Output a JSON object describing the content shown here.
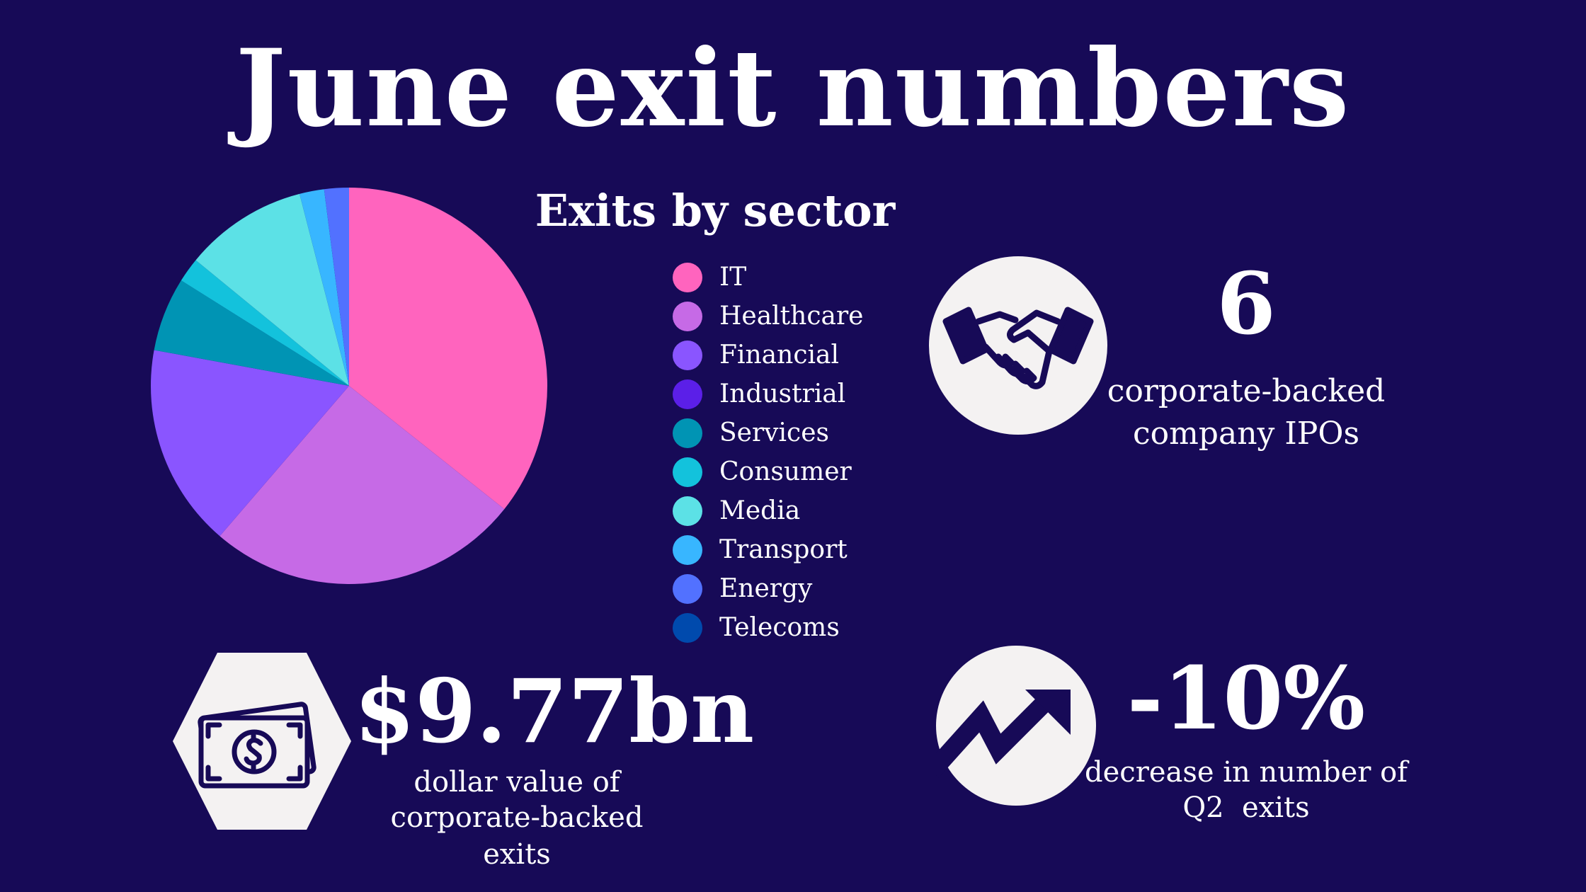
{
  "title": "June exit numbers",
  "chart_data": {
    "type": "pie",
    "title": "Exits by sector",
    "categories": [
      "IT",
      "Healthcare",
      "Financial",
      "Industrial",
      "Services",
      "Consumer",
      "Media",
      "Transport",
      "Energy",
      "Telecoms"
    ],
    "values": [
      35.5,
      25.5,
      16.5,
      0,
      6,
      2,
      10,
      2,
      2,
      0
    ],
    "colors": [
      "#ff64be",
      "#c66ae6",
      "#8a55ff",
      "#5b1fe8",
      "#0094b4",
      "#13c2dc",
      "#5ce1e6",
      "#38b6ff",
      "#5271ff",
      "#004aad"
    ],
    "legend_position": "right"
  },
  "stats": {
    "ipos": {
      "value": "6",
      "desc_line1": "corporate-backed",
      "desc_line2": "company IPOs",
      "icon": "handshake-icon"
    },
    "dollar": {
      "value": "$9.77bn",
      "desc_line1": "dollar value of",
      "desc_line2": "corporate-backed",
      "desc_line3": "exits",
      "icon": "money-bill-icon"
    },
    "decrease": {
      "value": "-10%",
      "desc_line1": "decrease in number of",
      "desc_line2": "Q2  exits",
      "icon": "trend-up-icon"
    }
  },
  "colors": {
    "background": "#170a57",
    "icon_bg": "#f4f2f2",
    "icon_fg": "#170a57"
  }
}
